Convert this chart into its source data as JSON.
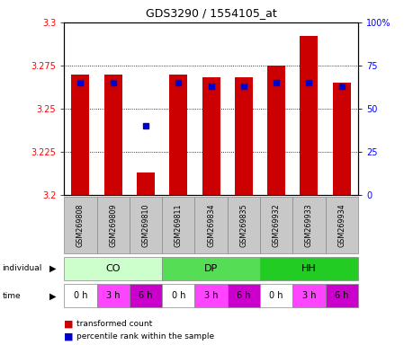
{
  "title": "GDS3290 / 1554105_at",
  "samples": [
    "GSM269808",
    "GSM269809",
    "GSM269810",
    "GSM269811",
    "GSM269834",
    "GSM269835",
    "GSM269932",
    "GSM269933",
    "GSM269934"
  ],
  "bar_values": [
    3.27,
    3.27,
    3.213,
    3.27,
    3.268,
    3.268,
    3.275,
    3.292,
    3.265
  ],
  "percentile_values": [
    65,
    65,
    40,
    65,
    63,
    63,
    65,
    65,
    63
  ],
  "ylim": [
    3.2,
    3.3
  ],
  "yticks": [
    3.2,
    3.225,
    3.25,
    3.275,
    3.3
  ],
  "right_ylim": [
    0,
    100
  ],
  "right_yticks": [
    0,
    25,
    50,
    75,
    100
  ],
  "right_yticklabels": [
    "0",
    "25",
    "50",
    "75",
    "100%"
  ],
  "bar_color": "#cc0000",
  "percentile_color": "#0000cc",
  "individual_labels": [
    "CO",
    "DP",
    "HH"
  ],
  "individual_colors": [
    "#ccffcc",
    "#55dd55",
    "#22cc22"
  ],
  "time_labels": [
    "0 h",
    "3 h",
    "6 h",
    "0 h",
    "3 h",
    "6 h",
    "0 h",
    "3 h",
    "6 h"
  ],
  "time_colors": [
    "#ffffff",
    "#ff44ff",
    "#cc00cc",
    "#ffffff",
    "#ff44ff",
    "#cc00cc",
    "#ffffff",
    "#ff44ff",
    "#cc00cc"
  ],
  "gsm_bg": "#c8c8c8",
  "legend_red": "transformed count",
  "legend_blue": "percentile rank within the sample",
  "bar_width": 0.55
}
